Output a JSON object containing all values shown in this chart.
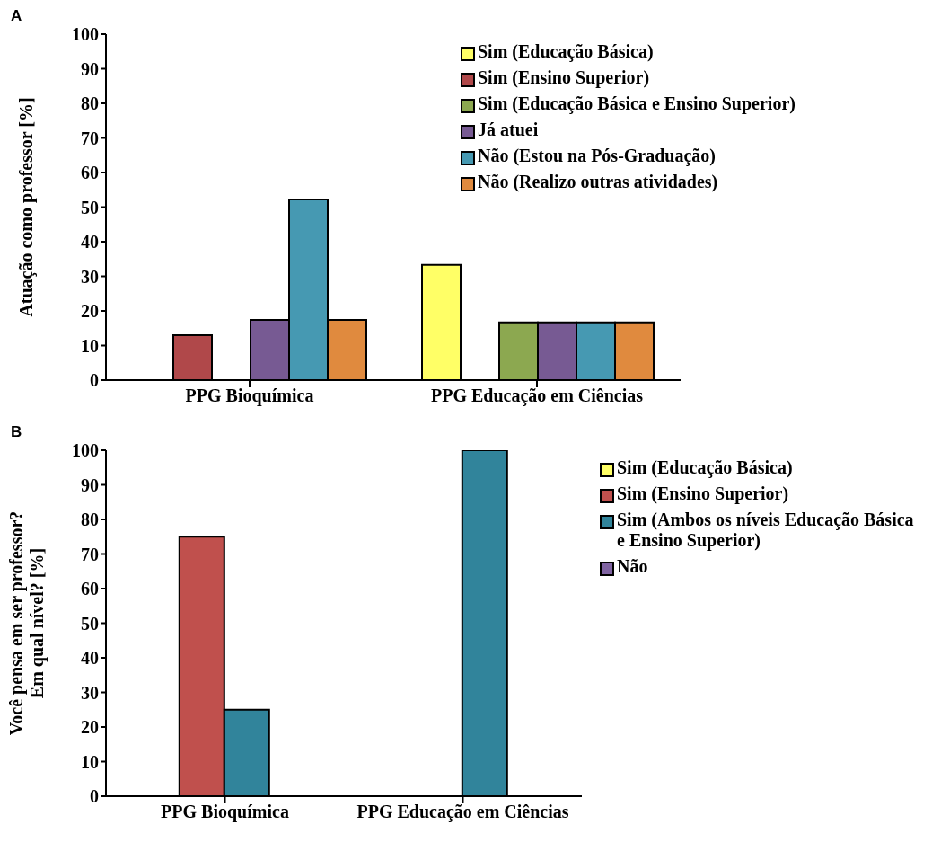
{
  "chart_data": [
    {
      "type": "bar",
      "title": "A",
      "ylabel": "Atuação como professor [%]",
      "categories": [
        "PPG Bioquímica",
        "PPG Educação em Ciências"
      ],
      "ylim": [
        0,
        100
      ],
      "yticks": [
        0,
        10,
        20,
        30,
        40,
        50,
        60,
        70,
        80,
        90,
        100
      ],
      "grid": false,
      "legend": "top right",
      "series": [
        {
          "name": "Sim (Educação Básica)",
          "color": "#ffff66",
          "values": [
            0,
            33.3
          ]
        },
        {
          "name": "Sim (Ensino Superior)",
          "color": "#b0484a",
          "values": [
            13.0,
            0
          ]
        },
        {
          "name": "Sim (Educação Básica e Ensino Superior)",
          "color": "#8ca850",
          "values": [
            0,
            16.7
          ]
        },
        {
          "name": "Já atuei",
          "color": "#775a93",
          "values": [
            17.4,
            16.7
          ]
        },
        {
          "name": "Não (Estou na Pós-Graduação)",
          "color": "#4699b2",
          "values": [
            52.2,
            16.7
          ]
        },
        {
          "name": "Não (Realizo outras atividades)",
          "color": "#e08a3e",
          "values": [
            17.4,
            16.7
          ]
        }
      ]
    },
    {
      "type": "bar",
      "title": "B",
      "ylabel": "Você pensa em ser professor?\nEm qual nível? [%]",
      "categories": [
        "PPG Bioquímica",
        "PPG Educação em Ciências"
      ],
      "ylim": [
        0,
        100
      ],
      "yticks": [
        0,
        10,
        20,
        30,
        40,
        50,
        60,
        70,
        80,
        90,
        100
      ],
      "grid": false,
      "legend": "top right",
      "series": [
        {
          "name": "Sim (Educação Básica)",
          "color": "#ffff66",
          "values": [
            0,
            0
          ]
        },
        {
          "name": "Sim (Ensino Superior)",
          "color": "#c0504d",
          "values": [
            75,
            0
          ]
        },
        {
          "name": "Sim (Ambos os níveis Educação Básica e Ensino Superior)",
          "color": "#31849b",
          "values": [
            25,
            100
          ]
        },
        {
          "name": "Não",
          "color": "#8064a2",
          "values": [
            0,
            0
          ]
        }
      ]
    }
  ]
}
